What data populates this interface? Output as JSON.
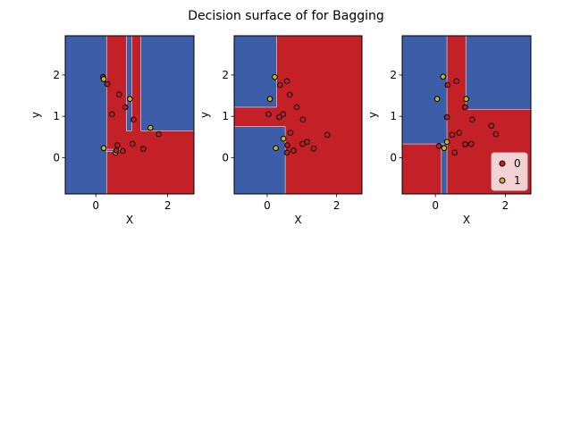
{
  "chart_data": {
    "type": "scatter",
    "title": "Decision surface of for Bagging",
    "class_colors": {
      "0": "#c41e24",
      "1": "#c9b32a"
    },
    "region_colors": {
      "0": "#c42027",
      "1": "#3c5ea8"
    },
    "legend": {
      "entries": [
        "0",
        "1"
      ],
      "location": "lower-right"
    },
    "panels": [
      {
        "xlabel": "X",
        "ylabel": "y",
        "xlim": [
          -0.85,
          2.73
        ],
        "ylim": [
          -0.88,
          2.95
        ],
        "xticks": [
          "0",
          "2"
        ],
        "xtick_values": [
          0,
          2
        ],
        "yticks": [
          "0",
          "1",
          "2"
        ],
        "ytick_values": [
          0,
          1,
          2
        ],
        "show_legend": false,
        "regions": [
          {
            "class": 1,
            "x": [
              -0.85,
              0.3
            ],
            "y": [
              -0.88,
              2.95
            ]
          },
          {
            "class": 1,
            "x": [
              0.85,
              1.0
            ],
            "y": [
              0.65,
              2.95
            ]
          },
          {
            "class": 1,
            "x": [
              1.25,
              2.73
            ],
            "y": [
              0.65,
              2.95
            ]
          },
          {
            "class": 1,
            "x": [
              0.3,
              0.8
            ],
            "y": [
              0.15,
              0.2
            ]
          }
        ],
        "points": [
          {
            "x": 0.2,
            "y": 1.95,
            "label": 0
          },
          {
            "x": 0.22,
            "y": 1.9,
            "label": 1
          },
          {
            "x": 0.32,
            "y": 1.78,
            "label": 0
          },
          {
            "x": 0.65,
            "y": 1.53,
            "label": 0
          },
          {
            "x": 0.95,
            "y": 1.42,
            "label": 1
          },
          {
            "x": 0.82,
            "y": 1.22,
            "label": 0
          },
          {
            "x": 0.45,
            "y": 1.05,
            "label": 0
          },
          {
            "x": 1.05,
            "y": 0.92,
            "label": 0
          },
          {
            "x": 1.52,
            "y": 0.72,
            "label": 1
          },
          {
            "x": 1.75,
            "y": 0.57,
            "label": 0
          },
          {
            "x": 1.02,
            "y": 0.33,
            "label": 0
          },
          {
            "x": 0.6,
            "y": 0.3,
            "label": 0
          },
          {
            "x": 0.22,
            "y": 0.23,
            "label": 1
          },
          {
            "x": 1.32,
            "y": 0.21,
            "label": 0
          },
          {
            "x": 0.55,
            "y": 0.12,
            "label": 1
          },
          {
            "x": 0.75,
            "y": 0.16,
            "label": 0
          },
          {
            "x": 0.57,
            "y": 0.17,
            "label": 0
          }
        ]
      },
      {
        "xlabel": "X",
        "ylabel": "y",
        "xlim": [
          -0.95,
          2.73
        ],
        "ylim": [
          -0.88,
          2.95
        ],
        "xticks": [
          "0",
          "2"
        ],
        "xtick_values": [
          0,
          2
        ],
        "yticks": [
          "0",
          "1",
          "2"
        ],
        "ytick_values": [
          0,
          1,
          2
        ],
        "show_legend": false,
        "regions": [
          {
            "class": 1,
            "x": [
              -0.95,
              0.27
            ],
            "y": [
              1.22,
              2.95
            ]
          },
          {
            "class": 1,
            "x": [
              -0.95,
              0.52
            ],
            "y": [
              -0.88,
              0.75
            ]
          }
        ],
        "points": [
          {
            "x": 0.22,
            "y": 1.95,
            "label": 1
          },
          {
            "x": 0.57,
            "y": 1.85,
            "label": 0
          },
          {
            "x": 0.37,
            "y": 1.76,
            "label": 0
          },
          {
            "x": 0.65,
            "y": 1.52,
            "label": 0
          },
          {
            "x": 0.08,
            "y": 1.42,
            "label": 1
          },
          {
            "x": 0.85,
            "y": 1.22,
            "label": 0
          },
          {
            "x": 0.04,
            "y": 1.05,
            "label": 0
          },
          {
            "x": 0.46,
            "y": 1.05,
            "label": 0
          },
          {
            "x": 0.35,
            "y": 0.98,
            "label": 0
          },
          {
            "x": 1.03,
            "y": 0.92,
            "label": 0
          },
          {
            "x": 0.67,
            "y": 0.6,
            "label": 0
          },
          {
            "x": 1.73,
            "y": 0.55,
            "label": 0
          },
          {
            "x": 0.47,
            "y": 0.46,
            "label": 1
          },
          {
            "x": 1.15,
            "y": 0.38,
            "label": 0
          },
          {
            "x": 0.58,
            "y": 0.3,
            "label": 0
          },
          {
            "x": 1.02,
            "y": 0.33,
            "label": 0
          },
          {
            "x": 0.25,
            "y": 0.23,
            "label": 1
          },
          {
            "x": 1.34,
            "y": 0.22,
            "label": 0
          },
          {
            "x": 0.76,
            "y": 0.17,
            "label": 0
          },
          {
            "x": 0.57,
            "y": 0.12,
            "label": 0
          }
        ]
      },
      {
        "xlabel": "X",
        "ylabel": "y",
        "xlim": [
          -0.95,
          2.73
        ],
        "ylim": [
          -0.88,
          2.95
        ],
        "xticks": [
          "0",
          "2"
        ],
        "xtick_values": [
          0,
          2
        ],
        "yticks": [
          "0",
          "1",
          "2"
        ],
        "ytick_values": [
          0,
          1,
          2
        ],
        "show_legend": true,
        "regions": [
          {
            "class": 1,
            "x": [
              -0.95,
              0.33
            ],
            "y": [
              0.33,
              2.95
            ]
          },
          {
            "class": 1,
            "x": [
              0.87,
              2.73
            ],
            "y": [
              1.17,
              2.95
            ]
          },
          {
            "class": 1,
            "x": [
              0.17,
              0.33
            ],
            "y": [
              -0.88,
              0.33
            ]
          }
        ],
        "points": [
          {
            "x": 0.22,
            "y": 1.96,
            "label": 1
          },
          {
            "x": 0.6,
            "y": 1.85,
            "label": 0
          },
          {
            "x": 0.35,
            "y": 1.76,
            "label": 0
          },
          {
            "x": 0.88,
            "y": 1.42,
            "label": 1
          },
          {
            "x": 0.05,
            "y": 1.42,
            "label": 1
          },
          {
            "x": 0.85,
            "y": 1.22,
            "label": 0
          },
          {
            "x": 0.33,
            "y": 0.98,
            "label": 0
          },
          {
            "x": 1.05,
            "y": 0.92,
            "label": 0
          },
          {
            "x": 1.6,
            "y": 0.77,
            "label": 0
          },
          {
            "x": 0.68,
            "y": 0.6,
            "label": 0
          },
          {
            "x": 1.73,
            "y": 0.57,
            "label": 0
          },
          {
            "x": 0.48,
            "y": 0.55,
            "label": 0
          },
          {
            "x": 0.33,
            "y": 0.38,
            "label": 1
          },
          {
            "x": 0.85,
            "y": 0.32,
            "label": 0
          },
          {
            "x": 1.02,
            "y": 0.33,
            "label": 0
          },
          {
            "x": 0.1,
            "y": 0.28,
            "label": 0
          },
          {
            "x": 0.25,
            "y": 0.23,
            "label": 1
          },
          {
            "x": 0.55,
            "y": 0.12,
            "label": 0
          }
        ]
      }
    ]
  }
}
